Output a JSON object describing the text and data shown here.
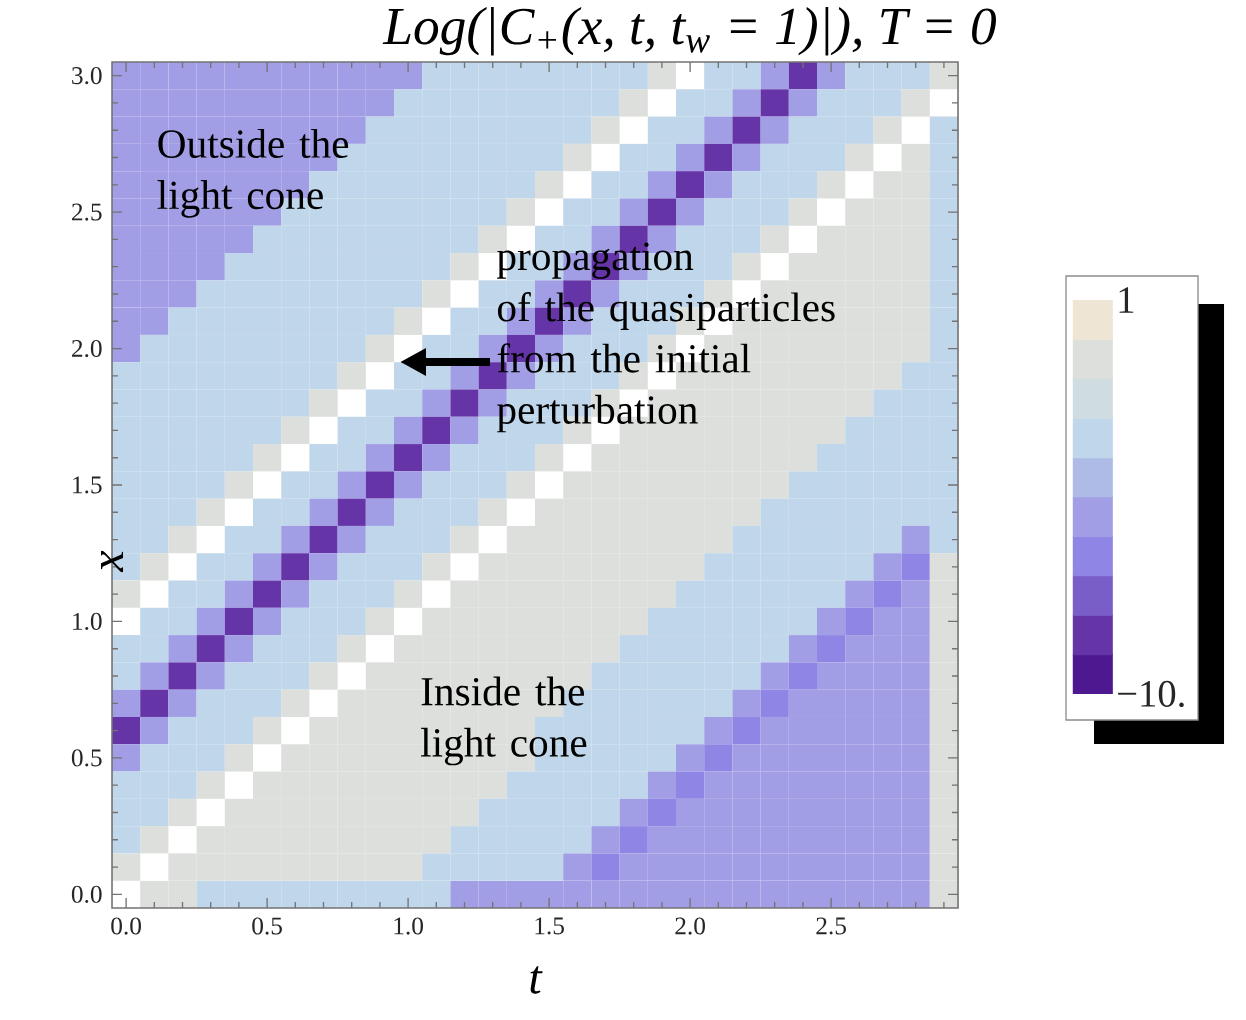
{
  "chart_data": {
    "type": "heatmap",
    "title": "Log(|C$_{+}$(x, t, t$_{w}$ = 1)|), T = 0",
    "xlabel": "t",
    "ylabel": "x",
    "categories": [
      "0.0",
      null,
      null,
      null,
      null,
      "0.5",
      null,
      null,
      null,
      null,
      "1.0",
      null,
      null,
      null,
      null,
      "1.5",
      null,
      null,
      null,
      null,
      "2.0",
      null,
      null,
      null,
      null,
      "2.5",
      null,
      null,
      null,
      null
    ],
    "y_categories": [
      "3.0",
      null,
      null,
      null,
      null,
      "2.5",
      null,
      null,
      null,
      null,
      "2.0",
      null,
      null,
      null,
      null,
      "1.5",
      null,
      null,
      null,
      null,
      "1.0",
      null,
      null,
      null,
      null,
      "0.5",
      null,
      null,
      null,
      null,
      "0.0"
    ],
    "cells": [
      [
        -5.1,
        -5.1,
        -5.1,
        -5.1,
        -5.1,
        -5.1,
        -5.1,
        -5.1,
        -5.1,
        -5.1,
        -5.1,
        -2.9,
        -2.9,
        -2.9,
        -2.9,
        -2.9,
        -2.9,
        -2.9,
        -2.9,
        -0.7,
        null,
        -2.9,
        -2.9,
        -5.1,
        -8.4,
        -5.1,
        -2.9,
        -2.9,
        -2.9,
        -0.7
      ],
      [
        -5.1,
        -5.1,
        -5.1,
        -5.1,
        -5.1,
        -5.1,
        -5.1,
        -5.1,
        -5.1,
        -5.1,
        -2.9,
        -2.9,
        -2.9,
        -2.9,
        -2.9,
        -2.9,
        -2.9,
        -2.9,
        -0.7,
        null,
        -2.9,
        -2.9,
        -5.1,
        -8.4,
        -5.1,
        -2.9,
        -2.9,
        -2.9,
        -0.7,
        null
      ],
      [
        -5.1,
        -5.1,
        -5.1,
        -5.1,
        -5.1,
        -5.1,
        -5.1,
        -5.1,
        -5.1,
        -2.9,
        -2.9,
        -2.9,
        -2.9,
        -2.9,
        -2.9,
        -2.9,
        -2.9,
        -0.7,
        null,
        -2.9,
        -2.9,
        -5.1,
        -8.4,
        -5.1,
        -2.9,
        -2.9,
        -2.9,
        -0.7,
        null,
        -2.9
      ],
      [
        -5.1,
        -5.1,
        -5.1,
        -5.1,
        -5.1,
        -5.1,
        -5.1,
        -5.1,
        -2.9,
        -2.9,
        -2.9,
        -2.9,
        -2.9,
        -2.9,
        -2.9,
        -2.9,
        -0.7,
        null,
        -2.9,
        -2.9,
        -5.1,
        -8.4,
        -5.1,
        -2.9,
        -2.9,
        -2.9,
        -0.7,
        null,
        -0.7,
        -2.9
      ],
      [
        -5.1,
        -5.1,
        -5.1,
        -5.1,
        -5.1,
        -5.1,
        -5.1,
        -2.9,
        -2.9,
        -2.9,
        -2.9,
        -2.9,
        -2.9,
        -2.9,
        -2.9,
        -0.7,
        null,
        -2.9,
        -2.9,
        -5.1,
        -8.4,
        -5.1,
        -2.9,
        -2.9,
        -2.9,
        -0.7,
        null,
        -0.7,
        -0.7,
        -2.9
      ],
      [
        -5.1,
        -5.1,
        -5.1,
        -5.1,
        -5.1,
        -5.1,
        -2.9,
        -2.9,
        -2.9,
        -2.9,
        -2.9,
        -2.9,
        -2.9,
        -2.9,
        -0.7,
        null,
        -2.9,
        -2.9,
        -5.1,
        -8.4,
        -5.1,
        -2.9,
        -2.9,
        -2.9,
        -0.7,
        null,
        -0.7,
        -0.7,
        -0.7,
        -2.9
      ],
      [
        -5.1,
        -5.1,
        -5.1,
        -5.1,
        -5.1,
        -2.9,
        -2.9,
        -2.9,
        -2.9,
        -2.9,
        -2.9,
        -2.9,
        -2.9,
        -0.7,
        null,
        -2.9,
        -2.9,
        -5.1,
        -8.4,
        -5.1,
        -2.9,
        -2.9,
        -2.9,
        -0.7,
        null,
        -0.7,
        -0.7,
        -0.7,
        -0.7,
        -2.9
      ],
      [
        -5.1,
        -5.1,
        -5.1,
        -5.1,
        -2.9,
        -2.9,
        -2.9,
        -2.9,
        -2.9,
        -2.9,
        -2.9,
        -2.9,
        -0.7,
        null,
        -2.9,
        -2.9,
        -5.1,
        -8.4,
        -5.1,
        -2.9,
        -2.9,
        -2.9,
        -0.7,
        null,
        -0.7,
        -0.7,
        -0.7,
        -0.7,
        -0.7,
        -2.9
      ],
      [
        -5.1,
        -5.1,
        -5.1,
        -2.9,
        -2.9,
        -2.9,
        -2.9,
        -2.9,
        -2.9,
        -2.9,
        -2.9,
        -0.7,
        null,
        -2.9,
        -2.9,
        -5.1,
        -8.4,
        -5.1,
        -2.9,
        -2.9,
        -2.9,
        -0.7,
        null,
        -0.7,
        -0.7,
        -0.7,
        -0.7,
        -0.7,
        -0.7,
        -2.9
      ],
      [
        -5.1,
        -5.1,
        -2.9,
        -2.9,
        -2.9,
        -2.9,
        -2.9,
        -2.9,
        -2.9,
        -2.9,
        -0.7,
        null,
        -2.9,
        -2.9,
        -5.1,
        -8.4,
        -5.1,
        -2.9,
        -2.9,
        -2.9,
        -0.7,
        null,
        -0.7,
        -0.7,
        -0.7,
        -0.7,
        -0.7,
        -0.7,
        -0.7,
        -2.9
      ],
      [
        -5.1,
        -2.9,
        -2.9,
        -2.9,
        -2.9,
        -2.9,
        -2.9,
        -2.9,
        -2.9,
        -0.7,
        null,
        -2.9,
        -2.9,
        -5.1,
        -8.4,
        -5.1,
        -2.9,
        -2.9,
        -2.9,
        -0.7,
        null,
        -0.7,
        -0.7,
        -0.7,
        -0.7,
        -0.7,
        -0.7,
        -0.7,
        -0.7,
        -2.9
      ],
      [
        -2.9,
        -2.9,
        -2.9,
        -2.9,
        -2.9,
        -2.9,
        -2.9,
        -2.9,
        -0.7,
        null,
        -2.9,
        -2.9,
        -5.1,
        -8.4,
        -5.1,
        -2.9,
        -2.9,
        -2.9,
        -0.7,
        null,
        -0.7,
        -0.7,
        -0.7,
        -0.7,
        -0.7,
        -0.7,
        -0.7,
        -0.7,
        -2.9,
        -2.9
      ],
      [
        -2.9,
        -2.9,
        -2.9,
        -2.9,
        -2.9,
        -2.9,
        -2.9,
        -0.7,
        null,
        -2.9,
        -2.9,
        -5.1,
        -8.4,
        -5.1,
        -2.9,
        -2.9,
        -2.9,
        -0.7,
        null,
        -0.7,
        -0.7,
        -0.7,
        -0.7,
        -0.7,
        -0.7,
        -0.7,
        -0.7,
        -2.9,
        -2.9,
        -2.9
      ],
      [
        -2.9,
        -2.9,
        -2.9,
        -2.9,
        -2.9,
        -2.9,
        -0.7,
        null,
        -2.9,
        -2.9,
        -5.1,
        -8.4,
        -5.1,
        -2.9,
        -2.9,
        -2.9,
        -0.7,
        null,
        -0.7,
        -0.7,
        -0.7,
        -0.7,
        -0.7,
        -0.7,
        -0.7,
        -0.7,
        -2.9,
        -2.9,
        -2.9,
        -2.9
      ],
      [
        -2.9,
        -2.9,
        -2.9,
        -2.9,
        -2.9,
        -0.7,
        null,
        -2.9,
        -2.9,
        -5.1,
        -8.4,
        -5.1,
        -2.9,
        -2.9,
        -2.9,
        -0.7,
        null,
        -0.7,
        -0.7,
        -0.7,
        -0.7,
        -0.7,
        -0.7,
        -0.7,
        -0.7,
        -2.9,
        -2.9,
        -2.9,
        -2.9,
        -2.9
      ],
      [
        -2.9,
        -2.9,
        -2.9,
        -2.9,
        -0.7,
        null,
        -2.9,
        -2.9,
        -5.1,
        -8.4,
        -5.1,
        -2.9,
        -2.9,
        -2.9,
        -0.7,
        null,
        -0.7,
        -0.7,
        -0.7,
        -0.7,
        -0.7,
        -0.7,
        -0.7,
        -0.7,
        -2.9,
        -2.9,
        -2.9,
        -2.9,
        -2.9,
        -2.9
      ],
      [
        -2.9,
        -2.9,
        -2.9,
        -0.7,
        null,
        -2.9,
        -2.9,
        -5.1,
        -8.4,
        -5.1,
        -2.9,
        -2.9,
        -2.9,
        -0.7,
        null,
        -0.7,
        -0.7,
        -0.7,
        -0.7,
        -0.7,
        -0.7,
        -0.7,
        -0.7,
        -2.9,
        -2.9,
        -2.9,
        -2.9,
        -2.9,
        -2.9,
        -2.9
      ],
      [
        -2.9,
        -2.9,
        -0.7,
        null,
        -2.9,
        -2.9,
        -5.1,
        -8.4,
        -5.1,
        -2.9,
        -2.9,
        -2.9,
        -0.7,
        null,
        -0.7,
        -0.7,
        -0.7,
        -0.7,
        -0.7,
        -0.7,
        -0.7,
        -0.7,
        -2.9,
        -2.9,
        -2.9,
        -2.9,
        -2.9,
        -2.9,
        -5.1,
        -2.9
      ],
      [
        -2.9,
        -0.7,
        null,
        -2.9,
        -2.9,
        -5.1,
        -8.4,
        -5.1,
        -2.9,
        -2.9,
        -2.9,
        -0.7,
        null,
        -0.7,
        -0.7,
        -0.7,
        -0.7,
        -0.7,
        -0.7,
        -0.7,
        -0.7,
        -2.9,
        -2.9,
        -2.9,
        -2.9,
        -2.9,
        -2.9,
        -5.1,
        -6.2,
        -0.7
      ],
      [
        -0.7,
        null,
        -2.9,
        -2.9,
        -5.1,
        -8.4,
        -5.1,
        -2.9,
        -2.9,
        -2.9,
        -0.7,
        null,
        -0.7,
        -0.7,
        -0.7,
        -0.7,
        -0.7,
        -0.7,
        -0.7,
        -0.7,
        -2.9,
        -2.9,
        -2.9,
        -2.9,
        -2.9,
        -2.9,
        -5.1,
        -6.2,
        -5.1,
        -0.7
      ],
      [
        null,
        -2.9,
        -2.9,
        -5.1,
        -8.4,
        -5.1,
        -2.9,
        -2.9,
        -2.9,
        -0.7,
        null,
        -0.7,
        -0.7,
        -0.7,
        -0.7,
        -0.7,
        -0.7,
        -0.7,
        -0.7,
        -2.9,
        -2.9,
        -2.9,
        -2.9,
        -2.9,
        -2.9,
        -5.1,
        -6.2,
        -5.1,
        -5.1,
        -0.7
      ],
      [
        -2.9,
        -2.9,
        -5.1,
        -8.4,
        -5.1,
        -2.9,
        -2.9,
        -2.9,
        -0.7,
        null,
        -0.7,
        -0.7,
        -0.7,
        -0.7,
        -0.7,
        -0.7,
        -0.7,
        -0.7,
        -2.9,
        -2.9,
        -2.9,
        -2.9,
        -2.9,
        -2.9,
        -5.1,
        -6.2,
        -5.1,
        -5.1,
        -5.1,
        -0.7
      ],
      [
        -2.9,
        -5.1,
        -8.4,
        -5.1,
        -2.9,
        -2.9,
        -2.9,
        -0.7,
        null,
        -0.7,
        -0.7,
        -0.7,
        -0.7,
        -0.7,
        -0.7,
        -0.7,
        -0.7,
        -2.9,
        -2.9,
        -2.9,
        -2.9,
        -2.9,
        -2.9,
        -5.1,
        -6.2,
        -5.1,
        -5.1,
        -5.1,
        -5.1,
        -0.7
      ],
      [
        -5.1,
        -8.4,
        -5.1,
        -2.9,
        -2.9,
        -2.9,
        -0.7,
        null,
        -0.7,
        -0.7,
        -0.7,
        -0.7,
        -0.7,
        -0.7,
        -0.7,
        -0.7,
        -2.9,
        -2.9,
        -2.9,
        -2.9,
        -2.9,
        -2.9,
        -5.1,
        -6.2,
        -5.1,
        -5.1,
        -5.1,
        -5.1,
        -5.1,
        -0.7
      ],
      [
        -8.4,
        -5.1,
        -2.9,
        -2.9,
        -2.9,
        -0.7,
        null,
        -0.7,
        -0.7,
        -0.7,
        -0.7,
        -0.7,
        -0.7,
        -0.7,
        -0.7,
        -2.9,
        -2.9,
        -2.9,
        -2.9,
        -2.9,
        -2.9,
        -5.1,
        -6.2,
        -5.1,
        -5.1,
        -5.1,
        -5.1,
        -5.1,
        -5.1,
        -0.7
      ],
      [
        -5.1,
        -2.9,
        -2.9,
        -2.9,
        -0.7,
        null,
        -0.7,
        -0.7,
        -0.7,
        -0.7,
        -0.7,
        -0.7,
        -0.7,
        -0.7,
        -0.7,
        -2.9,
        -2.9,
        -2.9,
        -2.9,
        -2.9,
        -5.1,
        -6.2,
        -5.1,
        -5.1,
        -5.1,
        -5.1,
        -5.1,
        -5.1,
        -5.1,
        -0.7
      ],
      [
        -2.9,
        -2.9,
        -2.9,
        -0.7,
        null,
        -0.7,
        -0.7,
        -0.7,
        -0.7,
        -0.7,
        -0.7,
        -0.7,
        -0.7,
        -0.7,
        -2.9,
        -2.9,
        -2.9,
        -2.9,
        -2.9,
        -5.1,
        -6.2,
        -5.1,
        -5.1,
        -5.1,
        -5.1,
        -5.1,
        -5.1,
        -5.1,
        -5.1,
        -0.7
      ],
      [
        -2.9,
        -2.9,
        -0.7,
        null,
        -0.7,
        -0.7,
        -0.7,
        -0.7,
        -0.7,
        -0.7,
        -0.7,
        -0.7,
        -0.7,
        -2.9,
        -2.9,
        -2.9,
        -2.9,
        -2.9,
        -5.1,
        -6.2,
        -5.1,
        -5.1,
        -5.1,
        -5.1,
        -5.1,
        -5.1,
        -5.1,
        -5.1,
        -5.1,
        -0.7
      ],
      [
        -2.9,
        -0.7,
        null,
        -0.7,
        -0.7,
        -0.7,
        -0.7,
        -0.7,
        -0.7,
        -0.7,
        -0.7,
        -0.7,
        -2.9,
        -2.9,
        -2.9,
        -2.9,
        -2.9,
        -5.1,
        -6.2,
        -5.1,
        -5.1,
        -5.1,
        -5.1,
        -5.1,
        -5.1,
        -5.1,
        -5.1,
        -5.1,
        -5.1,
        -0.7
      ],
      [
        -0.7,
        null,
        -0.7,
        -0.7,
        -0.7,
        -0.7,
        -0.7,
        -0.7,
        -0.7,
        -0.7,
        -0.7,
        -2.9,
        -2.9,
        -2.9,
        -2.9,
        -2.9,
        -5.1,
        -6.2,
        -5.1,
        -5.1,
        -5.1,
        -5.1,
        -5.1,
        -5.1,
        -5.1,
        -5.1,
        -5.1,
        -5.1,
        -5.1,
        -0.7
      ],
      [
        null,
        -0.7,
        -0.7,
        -2.9,
        -2.9,
        -2.9,
        -2.9,
        -2.9,
        -2.9,
        -2.9,
        -2.9,
        -2.9,
        -5.1,
        -5.1,
        -5.1,
        -5.1,
        -5.1,
        -5.1,
        -5.1,
        -5.1,
        -5.1,
        -5.1,
        -5.1,
        -5.1,
        -5.1,
        -5.1,
        -5.1,
        -5.1,
        -5.1,
        -0.7
      ]
    ],
    "clim": [
      -10,
      1
    ],
    "cticks": [
      1,
      {
        "value": -10,
        "label": "−10."
      }
    ],
    "annotations": [
      "Outside the\nlight cone",
      "propagation\nof the quasiparticles\nfrom the initial\nperturbation",
      "Inside the\nlight cone"
    ]
  }
}
